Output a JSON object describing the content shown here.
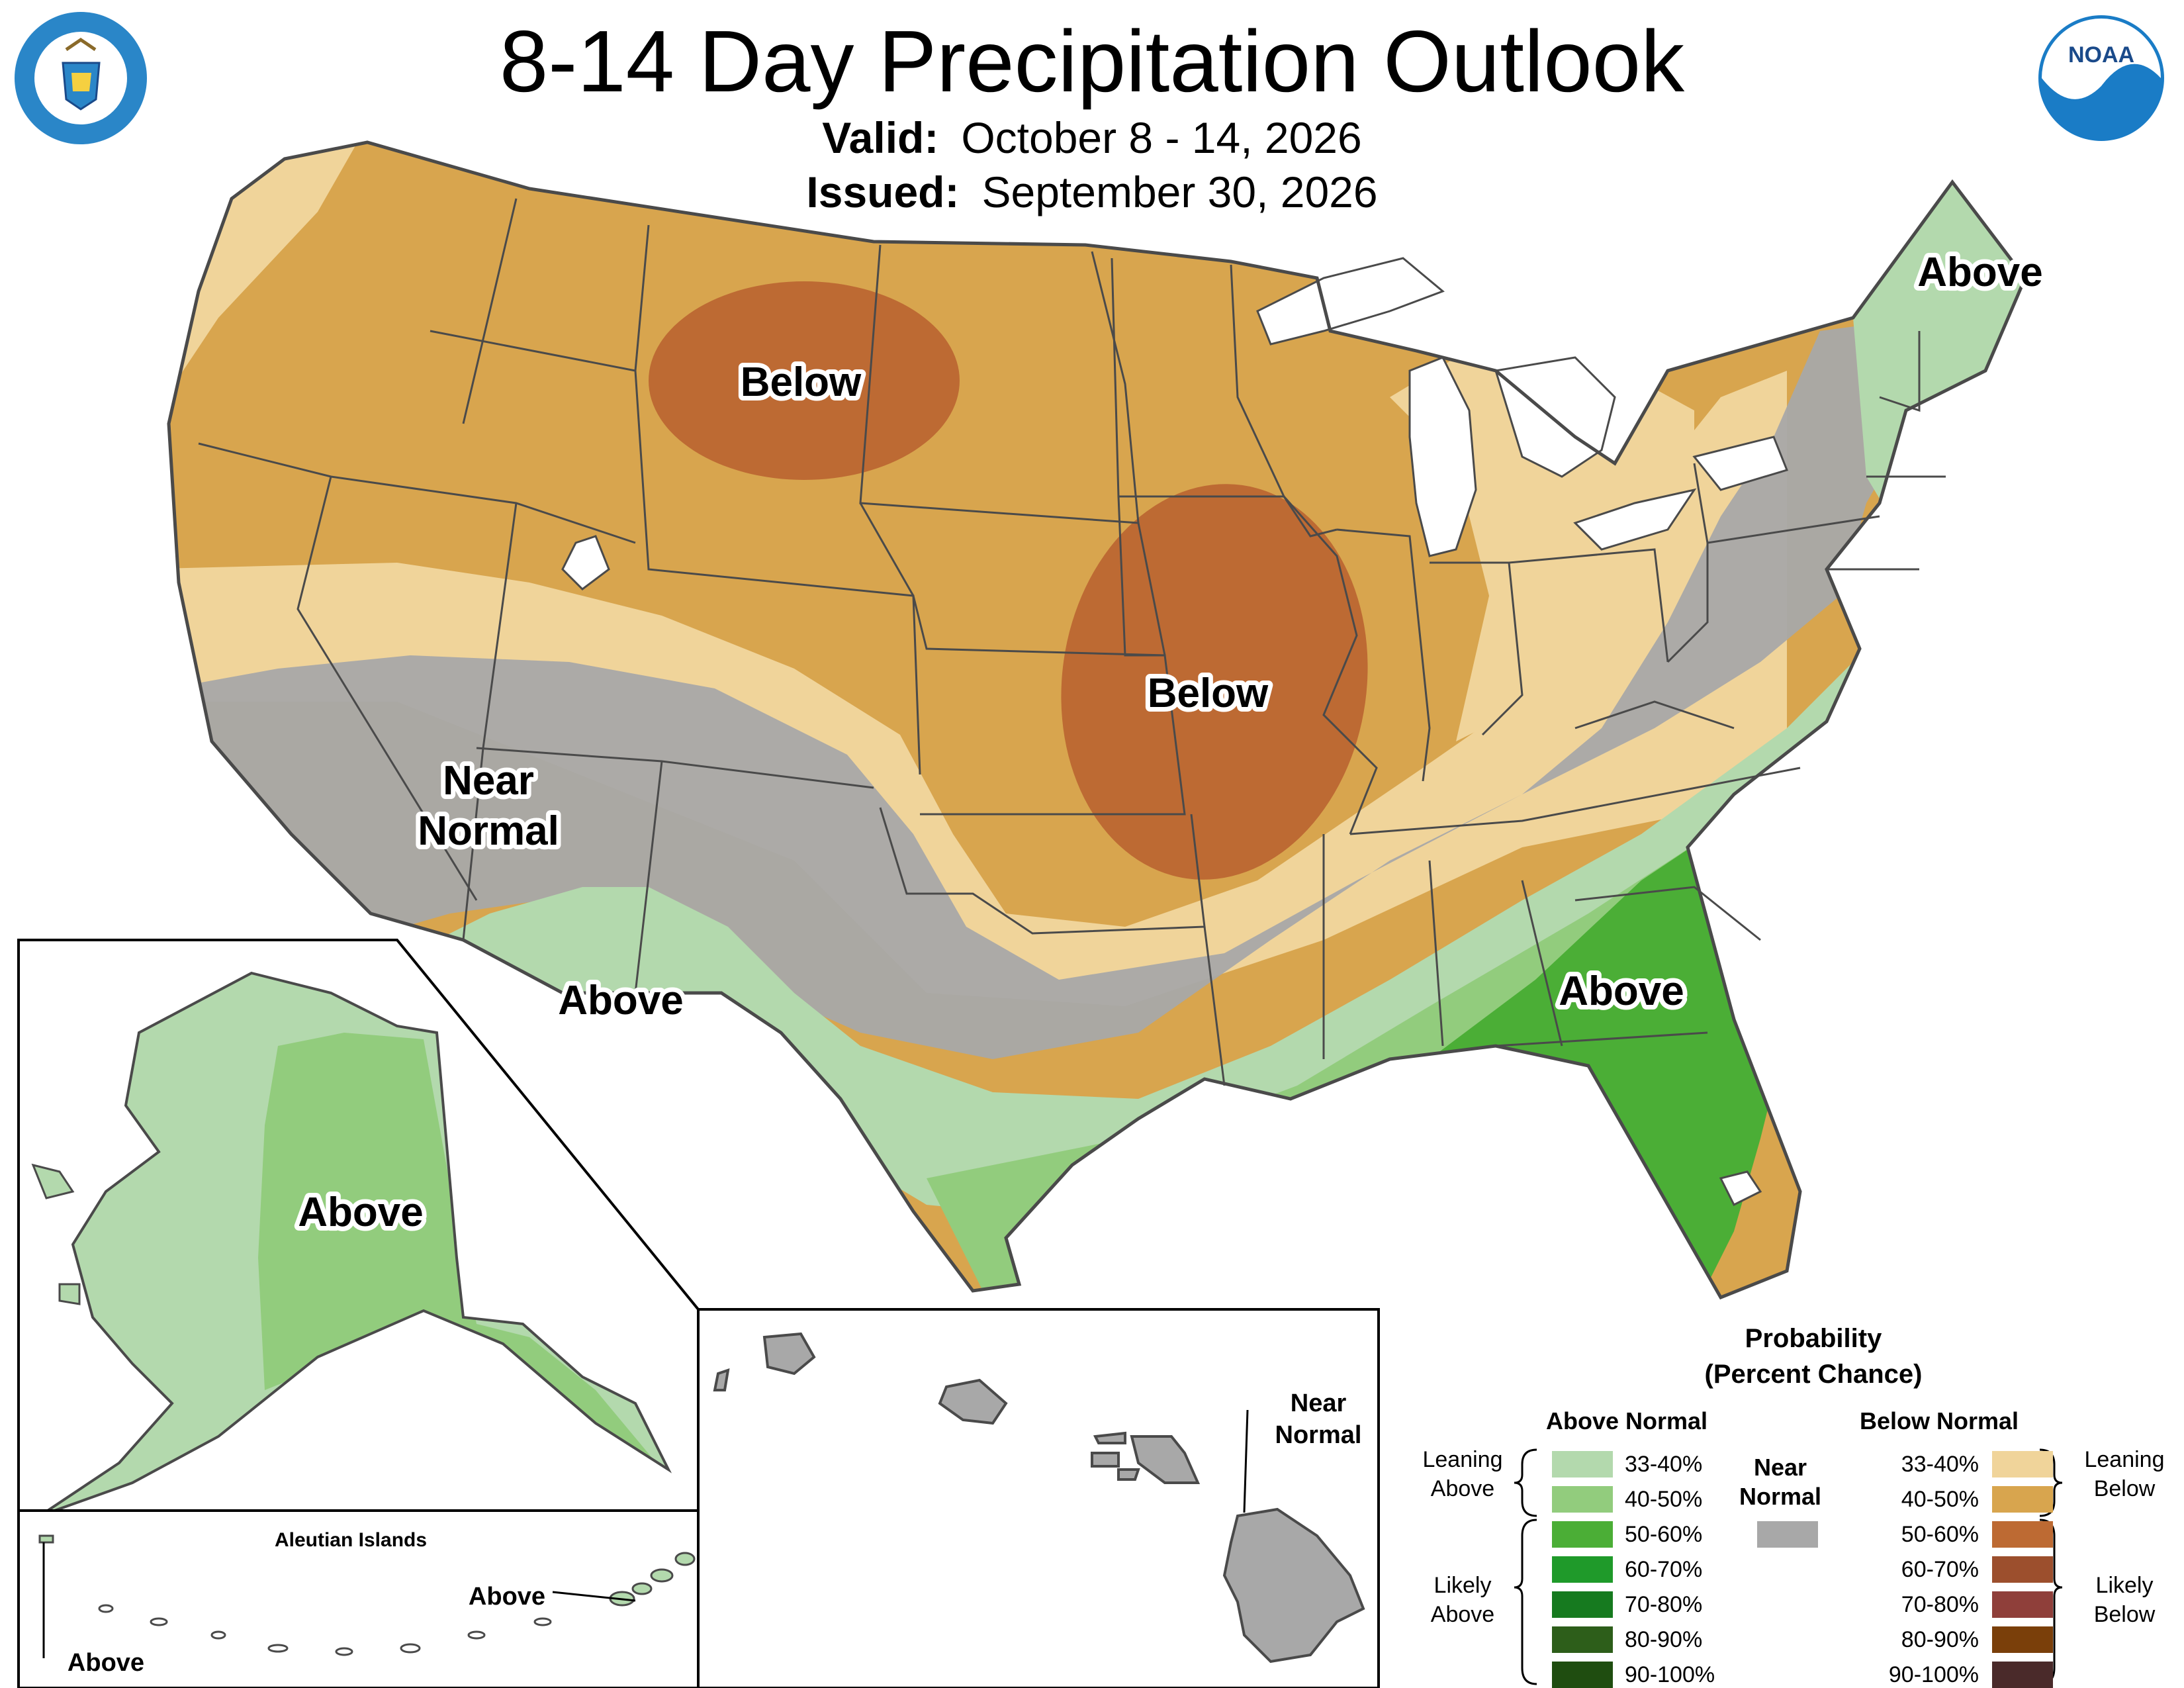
{
  "header": {
    "title": "8-14 Day Precipitation Outlook",
    "valid_label": "Valid:",
    "valid_value": "October 8 - 14, 2026",
    "issued_label": "Issued:",
    "issued_value": "September 30, 2026"
  },
  "map_labels": {
    "below_north": "Below",
    "below_central": "Below",
    "near_normal_1": "Near",
    "near_normal_2": "Normal",
    "above_southwest": "Above",
    "above_northeast": "Above",
    "above_southeast": "Above",
    "above_alaska": "Above",
    "hawaii_near_1": "Near",
    "hawaii_near_2": "Normal",
    "aleutian_title": "Aleutian Islands",
    "aleutian_above_east": "Above",
    "aleutian_above_west": "Above"
  },
  "legend": {
    "title_1": "Probability",
    "title_2": "(Percent Chance)",
    "above_header": "Above Normal",
    "below_header": "Below Normal",
    "near_header_1": "Near",
    "near_header_2": "Normal",
    "leaning_above_1": "Leaning",
    "leaning_above_2": "Above",
    "likely_above_1": "Likely",
    "likely_above_2": "Above",
    "leaning_below_1": "Leaning",
    "leaning_below_2": "Below",
    "likely_below_1": "Likely",
    "likely_below_2": "Below",
    "ranges": [
      "33-40%",
      "40-50%",
      "50-60%",
      "60-70%",
      "70-80%",
      "80-90%",
      "90-100%"
    ]
  },
  "colors": {
    "above": [
      "#b3d9ad",
      "#92cc7d",
      "#4bae36",
      "#1f9a2a",
      "#167a1f",
      "#2d5e1a",
      "#1f4d10"
    ],
    "below": [
      "#f0d49a",
      "#d8a54e",
      "#bd6a33",
      "#9c4f2d",
      "#8f3f3a",
      "#7a3f0a",
      "#4a2a2a"
    ],
    "near": "#a8a8a8",
    "water": "#ffffff",
    "border": "#4a4a4a",
    "noaa_blue": "#1a7cc6",
    "doc_blue": "#2a86c8"
  },
  "icons": [
    "department-of-commerce-seal",
    "noaa-logo"
  ]
}
